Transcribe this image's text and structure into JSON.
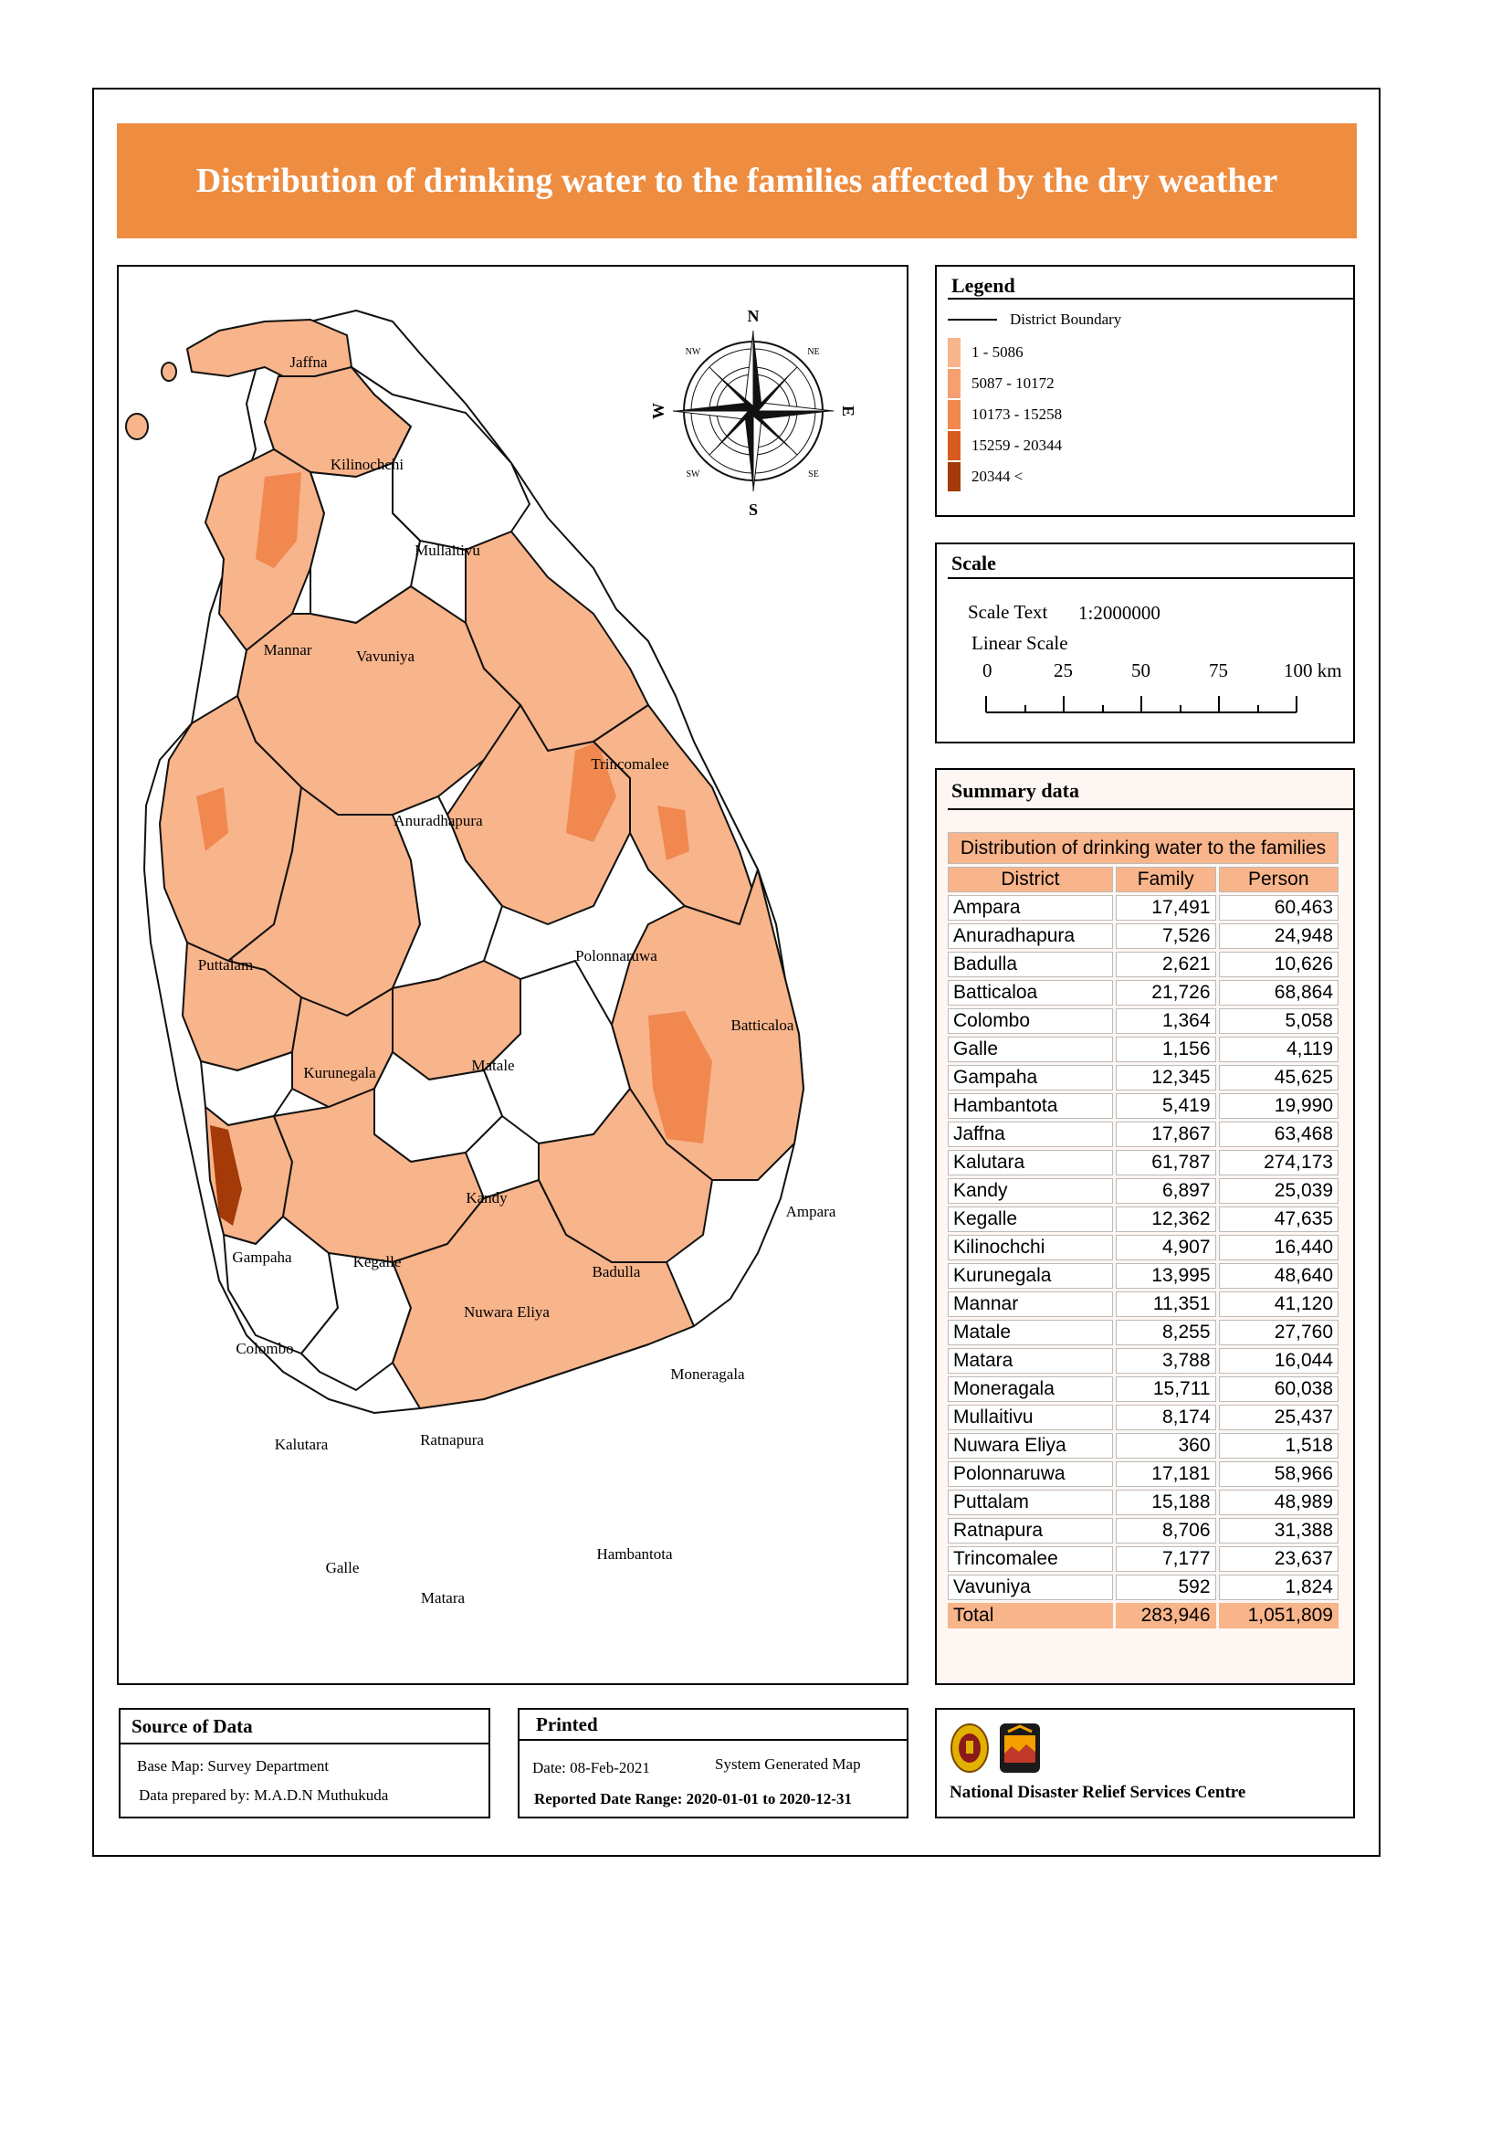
{
  "title": "Distribution of drinking water to the families affected by the dry weather",
  "legend": {
    "title": "Legend",
    "boundary_label": "District Boundary",
    "classes": [
      {
        "label": "1 - 5086",
        "color": "#f8b48a"
      },
      {
        "label": "5087 - 10172",
        "color": "#f4a070"
      },
      {
        "label": "10173 - 15258",
        "color": "#f08850"
      },
      {
        "label": "15259 - 20344",
        "color": "#d85c20"
      },
      {
        "label": "20344 <",
        "color": "#a33a08"
      }
    ]
  },
  "compass": {
    "n": "N",
    "s": "S",
    "e": "E",
    "w": "W",
    "ne": "NE",
    "nw": "NW",
    "se": "SE",
    "sw": "SW"
  },
  "scale": {
    "title": "Scale",
    "scale_text_label": "Scale Text",
    "scale_text_value": "1:2000000",
    "linear_label": "Linear Scale",
    "ticks": [
      "0",
      "25",
      "50",
      "75",
      "100 km"
    ]
  },
  "summary": {
    "title": "Summary data",
    "table_title": "Distribution of drinking water to the families",
    "columns": [
      "District",
      "Family",
      "Person"
    ],
    "rows": [
      [
        "Ampara",
        "17,491",
        "60,463"
      ],
      [
        "Anuradhapura",
        "7,526",
        "24,948"
      ],
      [
        "Badulla",
        "2,621",
        "10,626"
      ],
      [
        "Batticaloa",
        "21,726",
        "68,864"
      ],
      [
        "Colombo",
        "1,364",
        "5,058"
      ],
      [
        "Galle",
        "1,156",
        "4,119"
      ],
      [
        "Gampaha",
        "12,345",
        "45,625"
      ],
      [
        "Hambantota",
        "5,419",
        "19,990"
      ],
      [
        "Jaffna",
        "17,867",
        "63,468"
      ],
      [
        "Kalutara",
        "61,787",
        "274,173"
      ],
      [
        "Kandy",
        "6,897",
        "25,039"
      ],
      [
        "Kegalle",
        "12,362",
        "47,635"
      ],
      [
        "Kilinochchi",
        "4,907",
        "16,440"
      ],
      [
        "Kurunegala",
        "13,995",
        "48,640"
      ],
      [
        "Mannar",
        "11,351",
        "41,120"
      ],
      [
        "Matale",
        "8,255",
        "27,760"
      ],
      [
        "Matara",
        "3,788",
        "16,044"
      ],
      [
        "Moneragala",
        "15,711",
        "60,038"
      ],
      [
        "Mullaitivu",
        "8,174",
        "25,437"
      ],
      [
        "Nuwara Eliya",
        "360",
        "1,518"
      ],
      [
        "Polonnaruwa",
        "17,181",
        "58,966"
      ],
      [
        "Puttalam",
        "15,188",
        "48,989"
      ],
      [
        "Ratnapura",
        "8,706",
        "31,388"
      ],
      [
        "Trincomalee",
        "7,177",
        "23,637"
      ],
      [
        "Vavuniya",
        "592",
        "1,824"
      ]
    ],
    "total": [
      "Total",
      "283,946",
      "1,051,809"
    ]
  },
  "map_labels": [
    "Jaffna",
    "Kilinochchi",
    "Mullaitivu",
    "Mannar",
    "Vavuniya",
    "Trincomalee",
    "Anuradhapura",
    "Polonnaruwa",
    "Puttalam",
    "Batticaloa",
    "Kurunegala",
    "Matale",
    "Kandy",
    "Ampara",
    "Gampaha",
    "Kegalle",
    "Badulla",
    "Nuwara Eliya",
    "Colombo",
    "Moneragala",
    "Kalutara",
    "Ratnapura",
    "Galle",
    "Matara",
    "Hambantota"
  ],
  "source": {
    "title": "Source of Data",
    "base_map": "Base Map: Survey Department",
    "prepared_by": "Data prepared by: M.A.D.N Muthukuda"
  },
  "printed": {
    "title": "Printed",
    "date": "Date: 08-Feb-2021",
    "generated": "System Generated Map",
    "range": "Reported Date Range:  2020-01-01 to 2020-12-31"
  },
  "organization": "National Disaster Relief Services Centre"
}
